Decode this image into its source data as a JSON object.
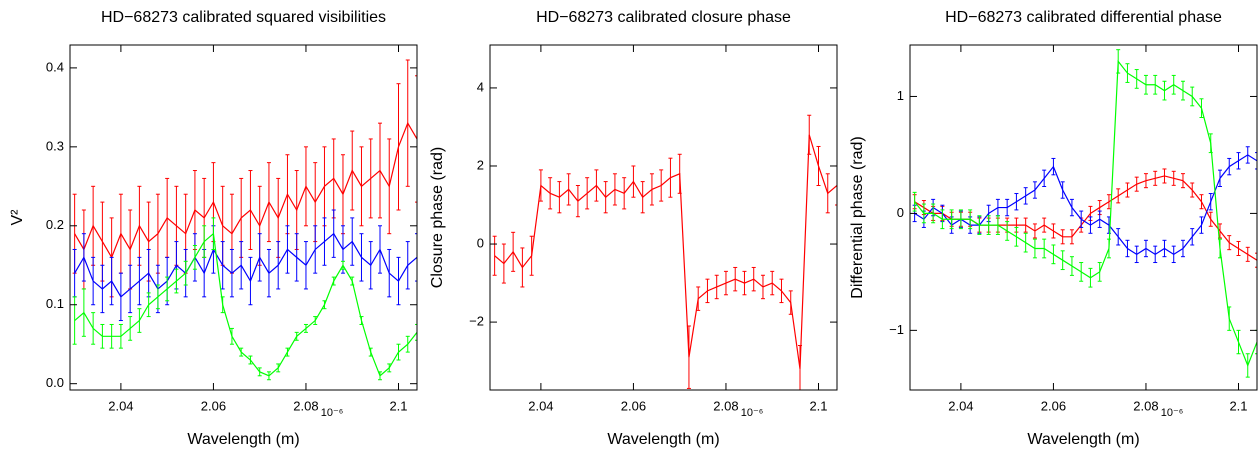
{
  "chart_data": [
    {
      "type": "errorbar-line",
      "title": "HD−68273 calibrated squared visibilities",
      "x_label": "Wavelength (m)",
      "y_label": "V²",
      "x_multiplier": "10⁻⁶",
      "xlim": [
        2.029,
        2.104
      ],
      "xticks": [
        2.04,
        2.06,
        2.08,
        2.1
      ],
      "ylim": [
        -0.008,
        0.429
      ],
      "yticks": [
        {
          "value": 0,
          "label": "0.0"
        },
        0.1,
        0.2,
        0.3,
        0.4
      ],
      "x": [
        2.03,
        2.032,
        2.034,
        2.036,
        2.038,
        2.04,
        2.042,
        2.044,
        2.046,
        2.048,
        2.05,
        2.052,
        2.054,
        2.056,
        2.058,
        2.06,
        2.062,
        2.064,
        2.066,
        2.068,
        2.07,
        2.072,
        2.074,
        2.076,
        2.078,
        2.08,
        2.082,
        2.084,
        2.086,
        2.088,
        2.09,
        2.092,
        2.094,
        2.096,
        2.098,
        2.1,
        2.102,
        2.104
      ],
      "series": [
        {
          "color": "#ff0000",
          "values": [
            0.19,
            0.17,
            0.2,
            0.18,
            0.16,
            0.19,
            0.17,
            0.2,
            0.18,
            0.19,
            0.21,
            0.2,
            0.19,
            0.22,
            0.21,
            0.23,
            0.2,
            0.19,
            0.21,
            0.22,
            0.2,
            0.23,
            0.21,
            0.24,
            0.22,
            0.25,
            0.23,
            0.25,
            0.26,
            0.24,
            0.27,
            0.25,
            0.26,
            0.27,
            0.25,
            0.3,
            0.33,
            0.31
          ],
          "errors": [
            0.05,
            0.05,
            0.05,
            0.05,
            0.05,
            0.05,
            0.05,
            0.05,
            0.05,
            0.05,
            0.05,
            0.05,
            0.05,
            0.05,
            0.05,
            0.05,
            0.05,
            0.05,
            0.05,
            0.05,
            0.05,
            0.05,
            0.05,
            0.05,
            0.05,
            0.05,
            0.05,
            0.05,
            0.05,
            0.05,
            0.05,
            0.05,
            0.05,
            0.06,
            0.06,
            0.08,
            0.08,
            0.08
          ]
        },
        {
          "color": "#0000ff",
          "values": [
            0.14,
            0.16,
            0.13,
            0.12,
            0.13,
            0.11,
            0.12,
            0.13,
            0.14,
            0.12,
            0.13,
            0.15,
            0.14,
            0.16,
            0.14,
            0.17,
            0.15,
            0.14,
            0.15,
            0.13,
            0.16,
            0.14,
            0.15,
            0.17,
            0.16,
            0.15,
            0.17,
            0.18,
            0.19,
            0.17,
            0.18,
            0.16,
            0.15,
            0.17,
            0.14,
            0.13,
            0.15,
            0.16
          ],
          "errors": [
            0.03,
            0.03,
            0.03,
            0.03,
            0.03,
            0.03,
            0.03,
            0.03,
            0.03,
            0.03,
            0.03,
            0.03,
            0.03,
            0.03,
            0.03,
            0.03,
            0.03,
            0.03,
            0.03,
            0.03,
            0.03,
            0.03,
            0.03,
            0.03,
            0.03,
            0.03,
            0.03,
            0.03,
            0.03,
            0.03,
            0.03,
            0.03,
            0.03,
            0.03,
            0.03,
            0.03,
            0.03,
            0.03
          ]
        },
        {
          "color": "#00ff00",
          "values": [
            0.08,
            0.09,
            0.07,
            0.06,
            0.06,
            0.06,
            0.07,
            0.08,
            0.1,
            0.11,
            0.12,
            0.13,
            0.14,
            0.16,
            0.18,
            0.19,
            0.1,
            0.06,
            0.04,
            0.03,
            0.015,
            0.01,
            0.02,
            0.04,
            0.06,
            0.07,
            0.08,
            0.1,
            0.13,
            0.15,
            0.13,
            0.08,
            0.04,
            0.01,
            0.02,
            0.04,
            0.05,
            0.065
          ],
          "errors": [
            0.03,
            0.03,
            0.02,
            0.015,
            0.015,
            0.015,
            0.015,
            0.015,
            0.015,
            0.015,
            0.015,
            0.015,
            0.015,
            0.015,
            0.02,
            0.02,
            0.01,
            0.01,
            0.005,
            0.005,
            0.005,
            0.005,
            0.005,
            0.005,
            0.005,
            0.005,
            0.005,
            0.005,
            0.005,
            0.005,
            0.005,
            0.005,
            0.005,
            0.005,
            0.005,
            0.01,
            0.01,
            0.01
          ]
        }
      ]
    },
    {
      "type": "errorbar-line",
      "title": "HD−68273 calibrated closure phase",
      "x_label": "Wavelength (m)",
      "y_label": "Closure phase (rad)",
      "x_multiplier": "10⁻⁶",
      "xlim": [
        2.029,
        2.104
      ],
      "xticks": [
        2.04,
        2.06,
        2.08,
        2.1
      ],
      "ylim": [
        -3.74,
        5.1
      ],
      "yticks": [
        {
          "value": -2,
          "label": "−2"
        },
        0,
        2,
        4
      ],
      "x": [
        2.03,
        2.032,
        2.034,
        2.036,
        2.038,
        2.04,
        2.042,
        2.044,
        2.046,
        2.048,
        2.05,
        2.052,
        2.054,
        2.056,
        2.058,
        2.06,
        2.062,
        2.064,
        2.066,
        2.068,
        2.07,
        2.072,
        2.074,
        2.076,
        2.078,
        2.08,
        2.082,
        2.084,
        2.086,
        2.088,
        2.09,
        2.092,
        2.094,
        2.096,
        2.098,
        2.1,
        2.102,
        2.104
      ],
      "series": [
        {
          "color": "#ff0000",
          "values": [
            -0.3,
            -0.5,
            -0.2,
            -0.6,
            -0.3,
            1.5,
            1.3,
            1.2,
            1.4,
            1.1,
            1.3,
            1.5,
            1.2,
            1.4,
            1.3,
            1.6,
            1.2,
            1.4,
            1.5,
            1.7,
            1.8,
            -2.9,
            -1.4,
            -1.2,
            -1.1,
            -1.0,
            -0.9,
            -1.0,
            -0.9,
            -1.1,
            -1.0,
            -1.2,
            -1.5,
            -3.2,
            2.8,
            2.0,
            1.3,
            1.5
          ],
          "errors": [
            0.5,
            0.5,
            0.5,
            0.5,
            0.5,
            0.4,
            0.4,
            0.4,
            0.4,
            0.4,
            0.4,
            0.4,
            0.4,
            0.4,
            0.4,
            0.4,
            0.4,
            0.4,
            0.4,
            0.5,
            0.5,
            0.8,
            0.3,
            0.3,
            0.3,
            0.3,
            0.3,
            0.3,
            0.3,
            0.3,
            0.3,
            0.3,
            0.3,
            0.6,
            0.5,
            0.5,
            0.5,
            0.5
          ]
        }
      ]
    },
    {
      "type": "errorbar-line",
      "title": "HD−68273 calibrated differential phase",
      "x_label": "Wavelength (m)",
      "y_label": "Differential phase (rad)",
      "x_multiplier": "10⁻⁶",
      "xlim": [
        2.029,
        2.104
      ],
      "xticks": [
        2.04,
        2.06,
        2.08,
        2.1
      ],
      "ylim": [
        -1.51,
        1.44
      ],
      "yticks": [
        {
          "value": -1,
          "label": "−1"
        },
        0,
        1
      ],
      "x": [
        2.03,
        2.032,
        2.034,
        2.036,
        2.038,
        2.04,
        2.042,
        2.044,
        2.046,
        2.048,
        2.05,
        2.052,
        2.054,
        2.056,
        2.058,
        2.06,
        2.062,
        2.064,
        2.066,
        2.068,
        2.07,
        2.072,
        2.074,
        2.076,
        2.078,
        2.08,
        2.082,
        2.084,
        2.086,
        2.088,
        2.09,
        2.092,
        2.094,
        2.096,
        2.098,
        2.1,
        2.102,
        2.104
      ],
      "series": [
        {
          "color": "#ff0000",
          "values": [
            0.1,
            0.05,
            0.0,
            0.0,
            -0.05,
            -0.05,
            -0.05,
            -0.1,
            -0.1,
            -0.1,
            -0.1,
            -0.1,
            -0.1,
            -0.15,
            -0.1,
            -0.15,
            -0.2,
            -0.2,
            -0.1,
            0.0,
            0.05,
            0.1,
            0.15,
            0.2,
            0.25,
            0.28,
            0.3,
            0.32,
            0.3,
            0.28,
            0.2,
            0.1,
            -0.05,
            -0.15,
            -0.25,
            -0.3,
            -0.35,
            -0.4
          ],
          "errors": [
            0.06,
            0.06,
            0.06,
            0.06,
            0.06,
            0.06,
            0.06,
            0.06,
            0.06,
            0.06,
            0.06,
            0.06,
            0.06,
            0.06,
            0.06,
            0.06,
            0.06,
            0.06,
            0.06,
            0.06,
            0.06,
            0.06,
            0.06,
            0.06,
            0.06,
            0.06,
            0.06,
            0.06,
            0.06,
            0.06,
            0.06,
            0.06,
            0.06,
            0.06,
            0.06,
            0.06,
            0.06,
            0.06
          ]
        },
        {
          "color": "#0000ff",
          "values": [
            0.0,
            -0.05,
            0.05,
            0.0,
            -0.1,
            -0.05,
            -0.1,
            -0.1,
            0.0,
            0.05,
            0.05,
            0.1,
            0.15,
            0.2,
            0.3,
            0.4,
            0.2,
            0.05,
            -0.05,
            -0.1,
            -0.05,
            -0.1,
            -0.2,
            -0.3,
            -0.35,
            -0.3,
            -0.35,
            -0.3,
            -0.35,
            -0.3,
            -0.2,
            -0.1,
            0.1,
            0.3,
            0.4,
            0.45,
            0.5,
            0.45
          ],
          "errors": [
            0.07,
            0.07,
            0.07,
            0.07,
            0.07,
            0.07,
            0.07,
            0.07,
            0.07,
            0.07,
            0.07,
            0.07,
            0.07,
            0.07,
            0.07,
            0.07,
            0.07,
            0.07,
            0.07,
            0.07,
            0.07,
            0.07,
            0.07,
            0.07,
            0.07,
            0.07,
            0.07,
            0.07,
            0.07,
            0.07,
            0.07,
            0.07,
            0.07,
            0.07,
            0.07,
            0.07,
            0.07,
            0.07
          ]
        },
        {
          "color": "#00ff00",
          "values": [
            0.1,
            0.0,
            0.0,
            -0.05,
            -0.05,
            -0.05,
            -0.05,
            -0.1,
            -0.1,
            -0.1,
            -0.15,
            -0.2,
            -0.25,
            -0.3,
            -0.3,
            -0.35,
            -0.4,
            -0.45,
            -0.5,
            -0.55,
            -0.5,
            -0.3,
            1.3,
            1.2,
            1.15,
            1.1,
            1.1,
            1.05,
            1.1,
            1.05,
            1.0,
            0.9,
            0.6,
            -0.3,
            -0.9,
            -1.1,
            -1.3,
            -1.1
          ],
          "errors": [
            0.08,
            0.08,
            0.08,
            0.08,
            0.08,
            0.08,
            0.08,
            0.08,
            0.08,
            0.08,
            0.08,
            0.08,
            0.08,
            0.08,
            0.08,
            0.08,
            0.08,
            0.08,
            0.08,
            0.08,
            0.08,
            0.08,
            0.1,
            0.08,
            0.08,
            0.08,
            0.08,
            0.08,
            0.08,
            0.08,
            0.08,
            0.08,
            0.08,
            0.08,
            0.1,
            0.1,
            0.1,
            0.1
          ]
        }
      ]
    }
  ]
}
